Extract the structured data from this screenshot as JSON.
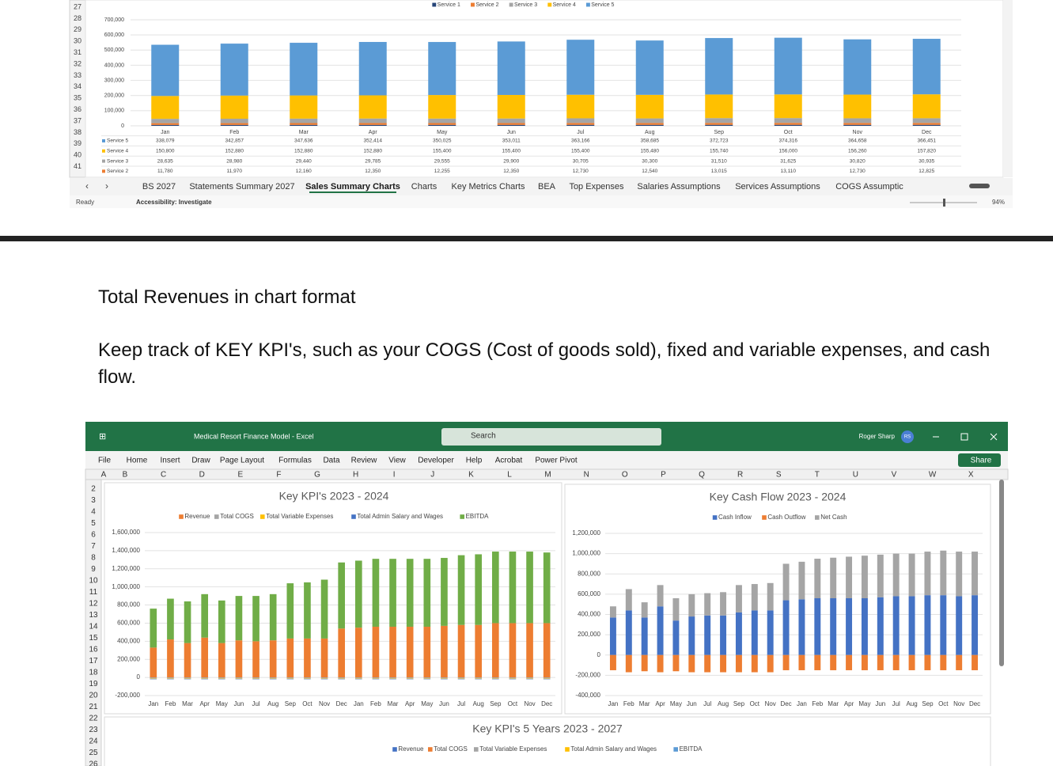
{
  "top_sheet": {
    "row_numbers": [
      27,
      28,
      29,
      30,
      31,
      32,
      33,
      34,
      35,
      36,
      37,
      38,
      39,
      40,
      41
    ],
    "chart": {
      "type": "bar",
      "stacked": true,
      "categories": [
        "Jan",
        "Feb",
        "Mar",
        "Apr",
        "May",
        "Jun",
        "Jul",
        "Aug",
        "Sep",
        "Oct",
        "Nov",
        "Dec"
      ],
      "series": [
        {
          "name": "Service 1",
          "color": "#264478",
          "values": [
            5890,
            5985,
            6080,
            6175,
            6128,
            6175,
            6365,
            6270,
            6508,
            6555,
            6365,
            6413
          ]
        },
        {
          "name": "Service 2",
          "color": "#ed7d31",
          "values": [
            11780,
            11970,
            12160,
            12350,
            12255,
            12350,
            12730,
            12540,
            13015,
            13110,
            12730,
            12825
          ],
          "value_labels": [
            "11,780",
            "11,970",
            "12,160",
            "12,350",
            "12,255",
            "12,350",
            "12,730",
            "12,540",
            "13,015",
            "13,110",
            "12,730",
            "12,825"
          ]
        },
        {
          "name": "Service 3",
          "color": "#a5a5a5",
          "values": [
            28635,
            28980,
            29440,
            29785,
            29555,
            29900,
            30705,
            30300,
            31510,
            31625,
            30820,
            30935
          ],
          "value_labels": [
            "28,635",
            "28,980",
            "29,440",
            "29,785",
            "29,555",
            "29,900",
            "30,705",
            "30,300",
            "31,510",
            "31,625",
            "30,820",
            "30,935"
          ]
        },
        {
          "name": "Service 4",
          "color": "#ffc000",
          "values": [
            150800,
            152880,
            152880,
            152880,
            155400,
            155400,
            155400,
            155480,
            155740,
            156000,
            156260,
            157820
          ],
          "value_labels": [
            "150,800",
            "152,880",
            "152,880",
            "152,880",
            "155,400",
            "155,400",
            "155,400",
            "155,480",
            "155,740",
            "156,000",
            "156,260",
            "157,820"
          ]
        },
        {
          "name": "Service 5",
          "color": "#5b9bd5",
          "values": [
            338079,
            342857,
            347636,
            352414,
            350025,
            353011,
            363166,
            358685,
            372723,
            374316,
            364658,
            366451
          ],
          "value_labels": [
            "338,079",
            "342,857",
            "347,636",
            "352,414",
            "350,025",
            "353,011",
            "363,166",
            "358,685",
            "372,723",
            "374,316",
            "364,658",
            "366,451"
          ]
        }
      ],
      "ylim": [
        0,
        700000
      ],
      "yticks": [
        0,
        {
          "value": 100000,
          "label": "100,000"
        },
        {
          "value": 200000,
          "label": "200,000"
        },
        {
          "value": 300000,
          "label": "300,000"
        },
        {
          "value": 400000,
          "label": "400,000"
        },
        {
          "value": 500000,
          "label": "500,000"
        },
        {
          "value": 600000,
          "label": "600,000"
        },
        {
          "value": 700000,
          "label": "700,000"
        }
      ],
      "grid": true
    },
    "tabs": [
      "BS 2027",
      "Statements Summary 2027",
      "Sales Summary Charts",
      "Charts",
      "Key Metrics Charts",
      "BEA",
      "Top Expenses",
      "Salaries Assumptions",
      "Services Assumptions",
      "COGS Assumptic"
    ],
    "active_tab": 2,
    "status": {
      "ready": "Ready",
      "accessibility": "Accessibility: Investigate",
      "zoom": "94%"
    }
  },
  "document": {
    "heading": "Total Revenues in chart format",
    "paragraph": "Keep track of KEY KPI's, such as your COGS (Cost of goods sold), fixed and variable expenses, and cash flow."
  },
  "bottom_window": {
    "title": "Medical Resort Finance Model  -  Excel",
    "search": "Search",
    "user": "Roger Sharp",
    "initials": "RS",
    "menu": [
      "File",
      "Home",
      "Insert",
      "Draw",
      "Page Layout",
      "Formulas",
      "Data",
      "Review",
      "View",
      "Developer",
      "Help",
      "Acrobat",
      "Power Pivot"
    ],
    "share": "Share",
    "columns": [
      "A",
      "B",
      "C",
      "D",
      "E",
      "F",
      "G",
      "H",
      "I",
      "J",
      "K",
      "L",
      "M",
      "N",
      "O",
      "P",
      "Q",
      "R",
      "S",
      "T",
      "U",
      "V",
      "W",
      "X"
    ],
    "rows": [
      2,
      3,
      4,
      5,
      6,
      7,
      8,
      9,
      10,
      11,
      12,
      13,
      14,
      15,
      16,
      17,
      18,
      19,
      20,
      21,
      22,
      23,
      24,
      25,
      26
    ],
    "charts": [
      {
        "type": "bar",
        "stacked": true,
        "title": "Key KPI's 2023 - 2024",
        "categories": [
          "Jan",
          "Feb",
          "Mar",
          "Apr",
          "May",
          "Jun",
          "Jul",
          "Aug",
          "Sep",
          "Oct",
          "Nov",
          "Dec",
          "Jan",
          "Feb",
          "Mar",
          "Apr",
          "May",
          "Jun",
          "Jul",
          "Aug",
          "Sep",
          "Oct",
          "Nov",
          "Dec"
        ],
        "series": [
          {
            "name": "Revenue",
            "color": "#ed7d31",
            "values": [
              330000,
              420000,
              380000,
              440000,
              380000,
              410000,
              400000,
              410000,
              430000,
              430000,
              430000,
              540000,
              550000,
              560000,
              560000,
              560000,
              560000,
              570000,
              580000,
              580000,
              600000,
              600000,
              600000,
              600000
            ]
          },
          {
            "name": "Total COGS",
            "color": "#a5a5a5",
            "values": [
              -10000,
              -10000,
              -10000,
              -10000,
              -10000,
              -10000,
              -10000,
              -10000,
              -10000,
              -10000,
              -10000,
              -10000,
              -10000,
              -10000,
              -10000,
              -10000,
              -10000,
              -10000,
              -10000,
              -10000,
              -10000,
              -10000,
              -10000,
              -10000
            ]
          },
          {
            "name": "Total Variable Expenses",
            "color": "#ffc000",
            "values": [
              -5000,
              -5000,
              -5000,
              -5000,
              -5000,
              -5000,
              -5000,
              -5000,
              -5000,
              -5000,
              -5000,
              -5000,
              -5000,
              -5000,
              -5000,
              -5000,
              -5000,
              -5000,
              -5000,
              -5000,
              -5000,
              -5000,
              -5000,
              -5000
            ]
          },
          {
            "name": "Total Admin Salary and Wages",
            "color": "#4472c4",
            "values": [
              -5000,
              -5000,
              -5000,
              -5000,
              -5000,
              -5000,
              -5000,
              -5000,
              -5000,
              -5000,
              -5000,
              -5000,
              -5000,
              -5000,
              -5000,
              -5000,
              -5000,
              -5000,
              -5000,
              -5000,
              -5000,
              -5000,
              -5000,
              -5000
            ]
          },
          {
            "name": "EBITDA",
            "color": "#70ad47",
            "values": [
              430000,
              450000,
              460000,
              480000,
              470000,
              490000,
              500000,
              510000,
              610000,
              620000,
              650000,
              730000,
              740000,
              750000,
              750000,
              750000,
              750000,
              750000,
              770000,
              780000,
              790000,
              790000,
              790000,
              780000
            ]
          }
        ],
        "ylim": [
          -200000,
          1600000
        ],
        "yticks": [
          {
            "value": -200000,
            "label": "-200,000"
          },
          0,
          {
            "value": 200000,
            "label": "200,000"
          },
          {
            "value": 400000,
            "label": "400,000"
          },
          {
            "value": 600000,
            "label": "600,000"
          },
          {
            "value": 800000,
            "label": "800,000"
          },
          {
            "value": 1000000,
            "label": "1,000,000"
          },
          {
            "value": 1200000,
            "label": "1,200,000"
          },
          {
            "value": 1400000,
            "label": "1,400,000"
          },
          {
            "value": 1600000,
            "label": "1,600,000"
          }
        ],
        "grid": true
      },
      {
        "type": "bar",
        "stacked": true,
        "title": "Key Cash Flow 2023 - 2024",
        "categories": [
          "Jan",
          "Feb",
          "Mar",
          "Apr",
          "May",
          "Jun",
          "Jul",
          "Aug",
          "Sep",
          "Oct",
          "Nov",
          "Dec",
          "Jan",
          "Feb",
          "Mar",
          "Apr",
          "May",
          "Jun",
          "Jul",
          "Aug",
          "Sep",
          "Oct",
          "Nov",
          "Dec"
        ],
        "series": [
          {
            "name": "Cash Inflow",
            "color": "#4472c4",
            "values": [
              370000,
              440000,
              370000,
              480000,
              340000,
              380000,
              390000,
              390000,
              420000,
              440000,
              440000,
              540000,
              550000,
              560000,
              560000,
              560000,
              560000,
              570000,
              580000,
              580000,
              590000,
              590000,
              580000,
              590000
            ]
          },
          {
            "name": "Cash Outflow",
            "color": "#ed7d31",
            "values": [
              -150000,
              -170000,
              -160000,
              -170000,
              -160000,
              -170000,
              -170000,
              -170000,
              -170000,
              -170000,
              -170000,
              -150000,
              -150000,
              -150000,
              -150000,
              -150000,
              -150000,
              -150000,
              -150000,
              -150000,
              -150000,
              -150000,
              -150000,
              -150000
            ]
          },
          {
            "name": "Net Cash",
            "color": "#a5a5a5",
            "values": [
              110000,
              210000,
              150000,
              210000,
              220000,
              220000,
              220000,
              230000,
              270000,
              260000,
              270000,
              360000,
              370000,
              390000,
              400000,
              410000,
              420000,
              420000,
              420000,
              420000,
              430000,
              440000,
              440000,
              430000
            ]
          }
        ],
        "ylim": [
          -400000,
          1200000
        ],
        "yticks": [
          {
            "value": -400000,
            "label": "-400,000"
          },
          {
            "value": -200000,
            "label": "-200,000"
          },
          0,
          {
            "value": 200000,
            "label": "200,000"
          },
          {
            "value": 400000,
            "label": "400,000"
          },
          {
            "value": 600000,
            "label": "600,000"
          },
          {
            "value": 800000,
            "label": "800,000"
          },
          {
            "value": 1000000,
            "label": "1,000,000"
          },
          {
            "value": 1200000,
            "label": "1,200,000"
          }
        ],
        "grid": true
      }
    ],
    "chart3": {
      "title": "Key KPI's 5 Years 2023 - 2027",
      "series": [
        {
          "name": "Revenue",
          "color": "#4472c4"
        },
        {
          "name": "Total COGS",
          "color": "#ed7d31"
        },
        {
          "name": "Total Variable Expenses",
          "color": "#a5a5a5"
        },
        {
          "name": "Total Admin Salary and Wages",
          "color": "#ffc000"
        },
        {
          "name": "EBITDA",
          "color": "#5b9bd5"
        }
      ]
    }
  }
}
